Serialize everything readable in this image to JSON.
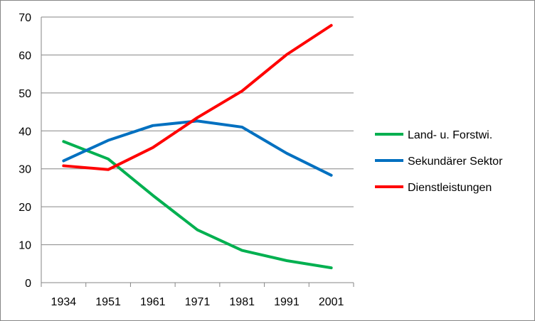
{
  "chart_data": {
    "type": "line",
    "title": "",
    "xlabel": "",
    "ylabel": "",
    "categories": [
      "1934",
      "1951",
      "1961",
      "1971",
      "1981",
      "1991",
      "2001"
    ],
    "ylim": [
      0,
      70
    ],
    "yticks": [
      "0",
      "10",
      "20",
      "30",
      "40",
      "50",
      "60",
      "70"
    ],
    "grid": true,
    "legend_position": "right",
    "series": [
      {
        "name": "Land- u. Forstwi.",
        "color": "#00b050",
        "values": [
          37.2,
          32.6,
          23.0,
          13.9,
          8.5,
          5.8,
          3.9
        ]
      },
      {
        "name": "Sekundärer Sektor",
        "color": "#0070c0",
        "values": [
          32.1,
          37.5,
          41.4,
          42.6,
          41.0,
          34.1,
          28.3
        ]
      },
      {
        "name": "Dienstleistungen",
        "color": "#ff0000",
        "values": [
          30.8,
          29.8,
          35.6,
          43.5,
          50.5,
          60.1,
          67.8
        ]
      }
    ]
  }
}
